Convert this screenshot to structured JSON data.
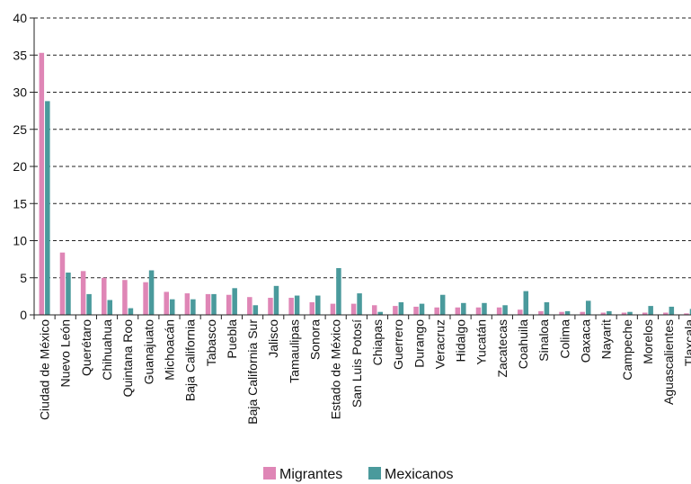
{
  "chart_data": {
    "type": "bar",
    "title": "",
    "xlabel": "",
    "ylabel": "",
    "ylim": [
      0,
      40
    ],
    "yticks": [
      0,
      5,
      10,
      15,
      20,
      25,
      30,
      35,
      40
    ],
    "grid": true,
    "legend_position": "bottom",
    "categories": [
      "Ciudad de México",
      "Nuevo León",
      "Querétaro",
      "Chihuahua",
      "Quintana Roo",
      "Guanajuato",
      "Michoacán",
      "Baja California",
      "Tabasco",
      "Puebla",
      "Baja California Sur",
      "Jalisco",
      "Tamaulipas",
      "Sonora",
      "Estado de México",
      "San Luis Potosí",
      "Chiapas",
      "Guerrero",
      "Durango",
      "Veracruz",
      "Hidalgo",
      "Yucatán",
      "Zacatecas",
      "Coahuila",
      "Sinaloa",
      "Colima",
      "Oaxaca",
      "Nayarit",
      "Campeche",
      "Morelos",
      "Aguascalientes",
      "Tlaxcala"
    ],
    "series": [
      {
        "name": "Migrantes",
        "color": "#df86b6",
        "values": [
          35.3,
          8.4,
          5.9,
          5.0,
          4.7,
          4.4,
          3.1,
          2.9,
          2.8,
          2.7,
          2.4,
          2.3,
          2.3,
          1.7,
          1.5,
          1.5,
          1.3,
          1.2,
          1.1,
          1.0,
          1.0,
          1.0,
          1.0,
          0.7,
          0.5,
          0.4,
          0.4,
          0.3,
          0.3,
          0.3,
          0.3,
          0.2
        ]
      },
      {
        "name": "Mexicanos",
        "color": "#4a9a9c",
        "values": [
          28.8,
          5.7,
          2.8,
          2.0,
          0.9,
          6.0,
          2.1,
          2.1,
          2.8,
          3.6,
          1.3,
          3.9,
          2.6,
          2.6,
          6.3,
          2.9,
          0.4,
          1.7,
          1.5,
          2.7,
          1.6,
          1.6,
          1.3,
          3.2,
          1.7,
          0.5,
          1.9,
          0.5,
          0.4,
          1.2,
          1.1,
          0.8
        ]
      }
    ]
  }
}
